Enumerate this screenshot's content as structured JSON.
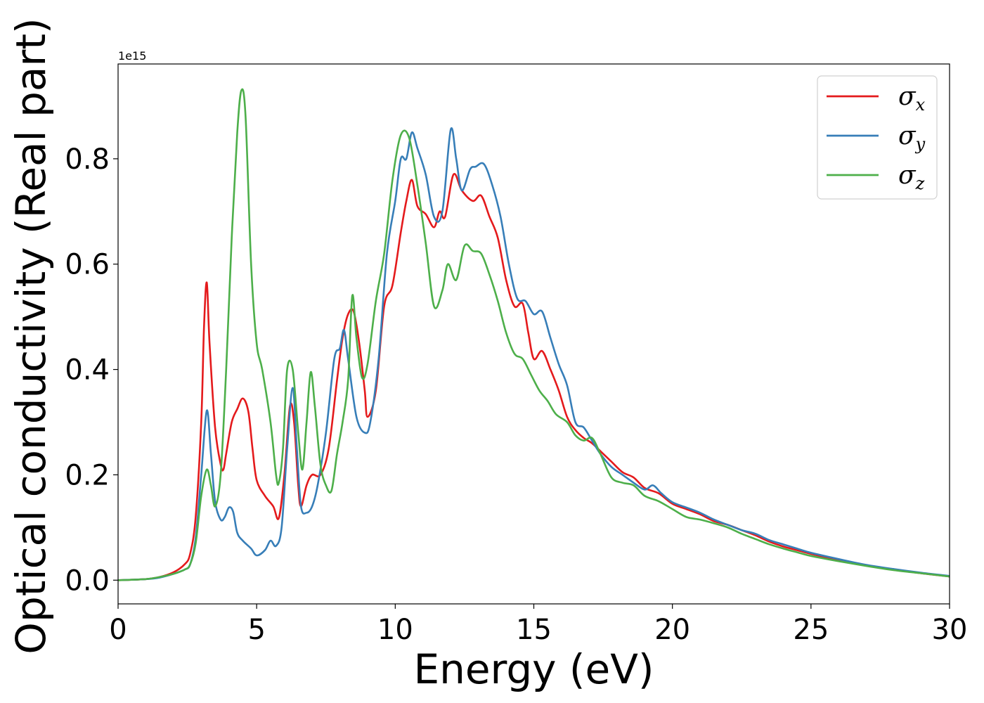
{
  "chart_data": {
    "type": "line",
    "title": "",
    "xlabel": "Energy (eV)",
    "ylabel": "Optical conductivity (Real part)",
    "y_offset_text": "1e15",
    "xlim": [
      0,
      30
    ],
    "ylim": [
      -0.045,
      0.98
    ],
    "xticks": [
      0,
      5,
      10,
      15,
      20,
      25,
      30
    ],
    "xtick_labels": [
      "0",
      "5",
      "10",
      "15",
      "20",
      "25",
      "30"
    ],
    "yticks": [
      0.0,
      0.2,
      0.4,
      0.6,
      0.8
    ],
    "ytick_labels": [
      "0.0",
      "0.2",
      "0.4",
      "0.6",
      "0.8"
    ],
    "grid": false,
    "legend_position": "top-right",
    "series": [
      {
        "name": "σ_x",
        "legend_base": "σ",
        "legend_sub": "x",
        "color": "#e41a1c",
        "points": [
          [
            0,
            0
          ],
          [
            1,
            0.002
          ],
          [
            1.5,
            0.006
          ],
          [
            2.0,
            0.015
          ],
          [
            2.4,
            0.03
          ],
          [
            2.6,
            0.05
          ],
          [
            2.8,
            0.12
          ],
          [
            3.0,
            0.3
          ],
          [
            3.1,
            0.48
          ],
          [
            3.2,
            0.565
          ],
          [
            3.3,
            0.45
          ],
          [
            3.5,
            0.29
          ],
          [
            3.7,
            0.22
          ],
          [
            3.8,
            0.21
          ],
          [
            3.9,
            0.24
          ],
          [
            4.1,
            0.3
          ],
          [
            4.3,
            0.325
          ],
          [
            4.5,
            0.345
          ],
          [
            4.7,
            0.32
          ],
          [
            4.85,
            0.25
          ],
          [
            5.0,
            0.19
          ],
          [
            5.3,
            0.16
          ],
          [
            5.6,
            0.14
          ],
          [
            5.8,
            0.118
          ],
          [
            6.0,
            0.2
          ],
          [
            6.2,
            0.33
          ],
          [
            6.35,
            0.3
          ],
          [
            6.5,
            0.18
          ],
          [
            6.6,
            0.14
          ],
          [
            6.8,
            0.18
          ],
          [
            7.0,
            0.2
          ],
          [
            7.3,
            0.2
          ],
          [
            7.6,
            0.25
          ],
          [
            7.9,
            0.38
          ],
          [
            8.1,
            0.46
          ],
          [
            8.3,
            0.505
          ],
          [
            8.5,
            0.51
          ],
          [
            8.7,
            0.45
          ],
          [
            8.9,
            0.36
          ],
          [
            9.0,
            0.31
          ],
          [
            9.3,
            0.36
          ],
          [
            9.6,
            0.52
          ],
          [
            9.9,
            0.56
          ],
          [
            10.2,
            0.66
          ],
          [
            10.4,
            0.72
          ],
          [
            10.6,
            0.76
          ],
          [
            10.8,
            0.71
          ],
          [
            11.1,
            0.695
          ],
          [
            11.4,
            0.67
          ],
          [
            11.6,
            0.7
          ],
          [
            11.8,
            0.69
          ],
          [
            12.1,
            0.77
          ],
          [
            12.4,
            0.74
          ],
          [
            12.8,
            0.72
          ],
          [
            13.1,
            0.73
          ],
          [
            13.4,
            0.69
          ],
          [
            13.7,
            0.65
          ],
          [
            14.0,
            0.57
          ],
          [
            14.3,
            0.52
          ],
          [
            14.6,
            0.525
          ],
          [
            14.8,
            0.47
          ],
          [
            15.0,
            0.42
          ],
          [
            15.3,
            0.435
          ],
          [
            15.6,
            0.4
          ],
          [
            15.9,
            0.36
          ],
          [
            16.2,
            0.31
          ],
          [
            16.5,
            0.285
          ],
          [
            16.8,
            0.27
          ],
          [
            17.1,
            0.26
          ],
          [
            17.5,
            0.24
          ],
          [
            17.8,
            0.225
          ],
          [
            18.2,
            0.205
          ],
          [
            18.6,
            0.195
          ],
          [
            19.0,
            0.175
          ],
          [
            19.5,
            0.165
          ],
          [
            20.0,
            0.145
          ],
          [
            20.5,
            0.135
          ],
          [
            21.0,
            0.125
          ],
          [
            21.5,
            0.112
          ],
          [
            22.0,
            0.105
          ],
          [
            22.5,
            0.095
          ],
          [
            23.0,
            0.085
          ],
          [
            23.5,
            0.073
          ],
          [
            24.0,
            0.064
          ],
          [
            24.5,
            0.057
          ],
          [
            25.0,
            0.05
          ],
          [
            26.0,
            0.038
          ],
          [
            27.0,
            0.028
          ],
          [
            28.0,
            0.02
          ],
          [
            29.0,
            0.013
          ],
          [
            30.0,
            0.007
          ]
        ]
      },
      {
        "name": "σ_y",
        "legend_base": "σ",
        "legend_sub": "y",
        "color": "#377eb8",
        "points": [
          [
            0,
            0
          ],
          [
            1,
            0.002
          ],
          [
            1.5,
            0.005
          ],
          [
            2.0,
            0.012
          ],
          [
            2.4,
            0.02
          ],
          [
            2.6,
            0.03
          ],
          [
            2.8,
            0.08
          ],
          [
            3.0,
            0.2
          ],
          [
            3.2,
            0.322
          ],
          [
            3.35,
            0.24
          ],
          [
            3.5,
            0.15
          ],
          [
            3.7,
            0.115
          ],
          [
            3.85,
            0.12
          ],
          [
            4.0,
            0.138
          ],
          [
            4.15,
            0.13
          ],
          [
            4.3,
            0.09
          ],
          [
            4.5,
            0.075
          ],
          [
            4.8,
            0.06
          ],
          [
            5.0,
            0.047
          ],
          [
            5.3,
            0.057
          ],
          [
            5.5,
            0.075
          ],
          [
            5.7,
            0.065
          ],
          [
            5.9,
            0.1
          ],
          [
            6.1,
            0.25
          ],
          [
            6.3,
            0.365
          ],
          [
            6.45,
            0.25
          ],
          [
            6.6,
            0.14
          ],
          [
            6.8,
            0.128
          ],
          [
            7.0,
            0.14
          ],
          [
            7.2,
            0.18
          ],
          [
            7.5,
            0.28
          ],
          [
            7.8,
            0.42
          ],
          [
            8.0,
            0.44
          ],
          [
            8.15,
            0.475
          ],
          [
            8.3,
            0.42
          ],
          [
            8.6,
            0.31
          ],
          [
            8.9,
            0.28
          ],
          [
            9.1,
            0.3
          ],
          [
            9.4,
            0.42
          ],
          [
            9.7,
            0.62
          ],
          [
            10.0,
            0.72
          ],
          [
            10.2,
            0.8
          ],
          [
            10.4,
            0.8
          ],
          [
            10.6,
            0.85
          ],
          [
            10.8,
            0.82
          ],
          [
            11.1,
            0.77
          ],
          [
            11.4,
            0.69
          ],
          [
            11.7,
            0.7
          ],
          [
            12.0,
            0.855
          ],
          [
            12.2,
            0.8
          ],
          [
            12.4,
            0.74
          ],
          [
            12.7,
            0.78
          ],
          [
            12.9,
            0.785
          ],
          [
            13.2,
            0.79
          ],
          [
            13.5,
            0.75
          ],
          [
            13.8,
            0.69
          ],
          [
            14.1,
            0.6
          ],
          [
            14.4,
            0.535
          ],
          [
            14.7,
            0.53
          ],
          [
            15.0,
            0.505
          ],
          [
            15.3,
            0.51
          ],
          [
            15.6,
            0.46
          ],
          [
            15.9,
            0.41
          ],
          [
            16.2,
            0.37
          ],
          [
            16.5,
            0.3
          ],
          [
            16.8,
            0.29
          ],
          [
            17.1,
            0.265
          ],
          [
            17.4,
            0.24
          ],
          [
            17.8,
            0.215
          ],
          [
            18.2,
            0.2
          ],
          [
            18.6,
            0.185
          ],
          [
            19.0,
            0.172
          ],
          [
            19.3,
            0.18
          ],
          [
            19.6,
            0.165
          ],
          [
            20.0,
            0.148
          ],
          [
            20.5,
            0.138
          ],
          [
            21.0,
            0.128
          ],
          [
            21.5,
            0.115
          ],
          [
            22.0,
            0.105
          ],
          [
            22.5,
            0.095
          ],
          [
            23.0,
            0.088
          ],
          [
            23.5,
            0.076
          ],
          [
            24.0,
            0.068
          ],
          [
            24.5,
            0.06
          ],
          [
            25.0,
            0.052
          ],
          [
            26.0,
            0.04
          ],
          [
            27.0,
            0.029
          ],
          [
            28.0,
            0.021
          ],
          [
            29.0,
            0.014
          ],
          [
            30.0,
            0.008
          ]
        ]
      },
      {
        "name": "σ_z",
        "legend_base": "σ",
        "legend_sub": "z",
        "color": "#4daf4a",
        "points": [
          [
            0,
            0
          ],
          [
            1,
            0.002
          ],
          [
            1.5,
            0.006
          ],
          [
            2.0,
            0.012
          ],
          [
            2.4,
            0.02
          ],
          [
            2.6,
            0.03
          ],
          [
            2.8,
            0.07
          ],
          [
            3.0,
            0.16
          ],
          [
            3.2,
            0.21
          ],
          [
            3.35,
            0.18
          ],
          [
            3.5,
            0.14
          ],
          [
            3.7,
            0.2
          ],
          [
            3.9,
            0.4
          ],
          [
            4.1,
            0.65
          ],
          [
            4.3,
            0.85
          ],
          [
            4.45,
            0.93
          ],
          [
            4.6,
            0.88
          ],
          [
            4.8,
            0.6
          ],
          [
            5.0,
            0.45
          ],
          [
            5.2,
            0.4
          ],
          [
            5.5,
            0.3
          ],
          [
            5.7,
            0.2
          ],
          [
            5.8,
            0.185
          ],
          [
            5.95,
            0.25
          ],
          [
            6.1,
            0.4
          ],
          [
            6.3,
            0.4
          ],
          [
            6.5,
            0.28
          ],
          [
            6.65,
            0.21
          ],
          [
            6.8,
            0.3
          ],
          [
            6.95,
            0.395
          ],
          [
            7.1,
            0.33
          ],
          [
            7.3,
            0.22
          ],
          [
            7.5,
            0.18
          ],
          [
            7.7,
            0.17
          ],
          [
            7.9,
            0.24
          ],
          [
            8.1,
            0.3
          ],
          [
            8.3,
            0.38
          ],
          [
            8.45,
            0.54
          ],
          [
            8.6,
            0.46
          ],
          [
            8.8,
            0.385
          ],
          [
            9.0,
            0.41
          ],
          [
            9.3,
            0.53
          ],
          [
            9.6,
            0.62
          ],
          [
            9.9,
            0.76
          ],
          [
            10.2,
            0.845
          ],
          [
            10.5,
            0.84
          ],
          [
            10.8,
            0.75
          ],
          [
            11.1,
            0.64
          ],
          [
            11.4,
            0.52
          ],
          [
            11.7,
            0.55
          ],
          [
            11.9,
            0.6
          ],
          [
            12.2,
            0.57
          ],
          [
            12.5,
            0.635
          ],
          [
            12.8,
            0.625
          ],
          [
            13.1,
            0.62
          ],
          [
            13.4,
            0.58
          ],
          [
            13.7,
            0.53
          ],
          [
            14.0,
            0.47
          ],
          [
            14.3,
            0.43
          ],
          [
            14.6,
            0.42
          ],
          [
            14.9,
            0.39
          ],
          [
            15.2,
            0.36
          ],
          [
            15.5,
            0.34
          ],
          [
            15.8,
            0.315
          ],
          [
            16.2,
            0.3
          ],
          [
            16.5,
            0.275
          ],
          [
            16.8,
            0.265
          ],
          [
            17.1,
            0.27
          ],
          [
            17.4,
            0.24
          ],
          [
            17.8,
            0.195
          ],
          [
            18.2,
            0.185
          ],
          [
            18.6,
            0.18
          ],
          [
            19.0,
            0.16
          ],
          [
            19.5,
            0.15
          ],
          [
            20.0,
            0.135
          ],
          [
            20.5,
            0.12
          ],
          [
            21.0,
            0.115
          ],
          [
            21.5,
            0.108
          ],
          [
            22.0,
            0.1
          ],
          [
            22.5,
            0.088
          ],
          [
            23.0,
            0.078
          ],
          [
            23.5,
            0.068
          ],
          [
            24.0,
            0.06
          ],
          [
            24.5,
            0.053
          ],
          [
            25.0,
            0.046
          ],
          [
            26.0,
            0.036
          ],
          [
            27.0,
            0.027
          ],
          [
            28.0,
            0.019
          ],
          [
            29.0,
            0.013
          ],
          [
            30.0,
            0.007
          ]
        ]
      }
    ]
  }
}
